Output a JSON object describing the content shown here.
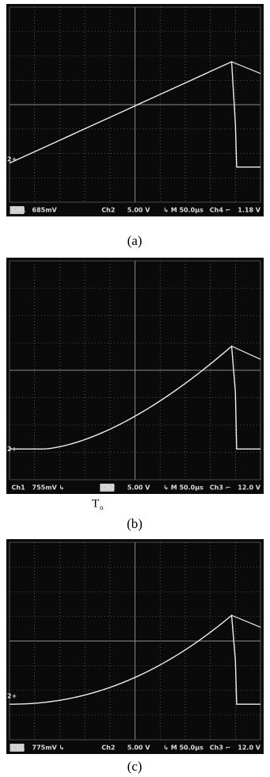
{
  "panels": [
    {
      "marker": "2+",
      "status": [
        "CH1",
        "685mV",
        "Ch2",
        "5.00 V",
        "↳ M 50.0µs",
        "Ch4 ⌐",
        "1.18 V"
      ],
      "caption": "(a)"
    },
    {
      "marker": "2+",
      "status": [
        "Ch1",
        "755mV ↳",
        "Ch2",
        "5.00 V",
        "↳ M 50.0µs",
        "Ch3 ⌐",
        "12.0 V"
      ],
      "caption": "(b)",
      "annotation": "T",
      "annotation_sub": "o"
    },
    {
      "marker": "2+",
      "status": [
        "Ch1",
        "775mV ↳",
        "Ch2",
        "5.00 V",
        "↳ M 50.0µs",
        "Ch3 ⌐",
        "12.0 V"
      ],
      "caption": "(c)"
    }
  ]
}
